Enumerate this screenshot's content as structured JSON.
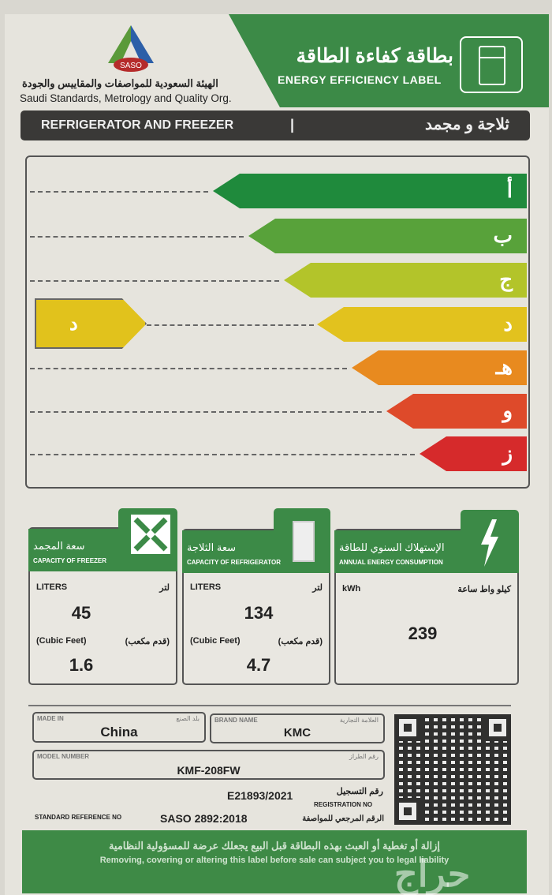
{
  "header": {
    "logo_text": "SASO",
    "org_ar": "الهيئة السعودية للمواصفات والمقاييس والجودة",
    "org_en": "Saudi Standards, Metrology and Quality Org.",
    "title_ar": "بطاقة كفاءة الطاقة",
    "title_en": "ENERGY EFFICIENCY LABEL",
    "fridge_icon": "refrigerator-icon"
  },
  "type": {
    "en": "REFRIGERATOR AND FREEZER",
    "separator": "|",
    "ar": "ثلاجة و مجمد"
  },
  "scale": {
    "classes": [
      {
        "letter": "أ",
        "color": "#1f8a3c"
      },
      {
        "letter": "ب",
        "color": "#58a23a"
      },
      {
        "letter": "ج",
        "color": "#b3c42a"
      },
      {
        "letter": "د",
        "color": "#e2c21e"
      },
      {
        "letter": "هـ",
        "color": "#e88a1f"
      },
      {
        "letter": "و",
        "color": "#de4a2a"
      },
      {
        "letter": "ز",
        "color": "#d62a2b"
      }
    ],
    "rating": "د",
    "rating_color": "#e1c21c"
  },
  "freezer": {
    "title_ar": "سعة المجمد",
    "title_en": "CAPACITY OF FREEZER",
    "liters_en": "LITERS",
    "liters_ar": "لتر",
    "liters": "45",
    "cf_en": "(Cubic Feet)",
    "cf_ar": "(قدم مكعب)",
    "cubic_feet": "1.6"
  },
  "refrigerator": {
    "title_ar": "سعة الثلاجة",
    "title_en": "CAPACITY OF REFRIGERATOR",
    "liters_en": "LITERS",
    "liters_ar": "لتر",
    "liters": "134",
    "cf_en": "(Cubic Feet)",
    "cf_ar": "(قدم مكعب)",
    "cubic_feet": "4.7"
  },
  "energy": {
    "title_ar": "الإستهلاك السنوي للطاقة",
    "title_en": "ANNUAL ENERGY CONSUMPTION",
    "unit_en": "kWh",
    "unit_ar": "كيلو واط ساعة",
    "value": "239"
  },
  "details": {
    "made_in_label": "MADE IN",
    "made_in_label_ar": "بلد الصنع",
    "made_in": "China",
    "brand_label": "BRAND NAME",
    "brand_label_ar": "العلامة التجارية",
    "brand": "KMC",
    "model_label": "MODEL NUMBER",
    "model_label_ar": "رقم الطراز",
    "model": "KMF-208FW",
    "registration": "E21893/2021",
    "registration_label_ar": "رقم التسجيل",
    "registration_label_en": "REGISTRATION NO",
    "standard_label_en": "STANDARD REFERENCE NO",
    "standard": "SASO 2892:2018",
    "standard_label_ar": "الرقم المرجعي للمواصفة"
  },
  "footer": {
    "ar": "إزالة أو تغطية أو العبث بهذه البطاقة قبل البيع يجعلك عرضة للمسؤولية النظامية",
    "en": "Removing, covering or altering this label before sale can subject you to legal liability"
  },
  "watermark": "حراج"
}
